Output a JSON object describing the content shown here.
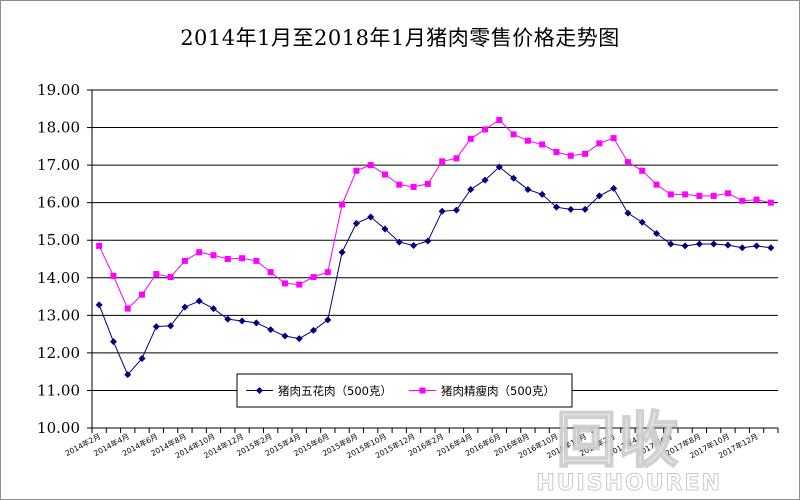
{
  "chart_data": {
    "type": "line",
    "title": "2014年1月至2018年1月猪肉零售价格走势图",
    "xlabel": "",
    "ylabel": "",
    "ylim": [
      10,
      19
    ],
    "yticks": [
      "10.00",
      "11.00",
      "12.00",
      "13.00",
      "14.00",
      "15.00",
      "16.00",
      "17.00",
      "18.00",
      "19.00"
    ],
    "x_tick_labels": [
      "2014年2月",
      "2014年4月",
      "2014年6月",
      "2014年8月",
      "2014年10月",
      "2014年12月",
      "2015年2月",
      "2015年4月",
      "2015年6月",
      "2015年8月",
      "2015年10月",
      "2015年12月",
      "2016年2月",
      "2016年4月",
      "2016年6月",
      "2016年8月",
      "2016年10月",
      "2016年12月",
      "2017年2月",
      "2017年4月",
      "2017年6月",
      "2017年8月",
      "2017年10月",
      "2017年12月"
    ],
    "grid": true,
    "legend_position": "bottom-center",
    "series": [
      {
        "name": "猪肉五花肉（500克）",
        "color": "#000080",
        "marker": "diamond",
        "values": [
          13.28,
          12.3,
          11.42,
          11.85,
          12.7,
          12.72,
          13.22,
          13.38,
          13.18,
          12.9,
          12.85,
          12.8,
          12.62,
          12.45,
          12.38,
          12.6,
          12.88,
          14.68,
          15.45,
          15.62,
          15.3,
          14.95,
          14.86,
          14.98,
          15.77,
          15.8,
          16.35,
          16.6,
          16.95,
          16.65,
          16.35,
          16.22,
          15.88,
          15.82,
          15.82,
          16.18,
          16.38,
          15.72,
          15.48,
          15.18,
          14.9,
          14.85,
          14.9,
          14.9,
          14.87,
          14.8,
          14.85,
          14.8
        ]
      },
      {
        "name": "猪肉精瘦肉（500克）",
        "color": "#ff00ff",
        "marker": "square",
        "values": [
          14.85,
          14.05,
          13.18,
          13.55,
          14.1,
          14.02,
          14.45,
          14.68,
          14.6,
          14.5,
          14.52,
          14.45,
          14.15,
          13.85,
          13.82,
          14.02,
          14.15,
          15.95,
          16.85,
          17.0,
          16.75,
          16.48,
          16.42,
          16.5,
          17.1,
          17.18,
          17.7,
          17.95,
          18.2,
          17.82,
          17.65,
          17.55,
          17.35,
          17.25,
          17.3,
          17.58,
          17.72,
          17.08,
          16.85,
          16.48,
          16.22,
          16.22,
          16.18,
          16.18,
          16.25,
          16.05,
          16.08,
          16.0
        ]
      }
    ]
  },
  "watermark": {
    "cn": "回收",
    "en": "HUISHOUREN"
  }
}
